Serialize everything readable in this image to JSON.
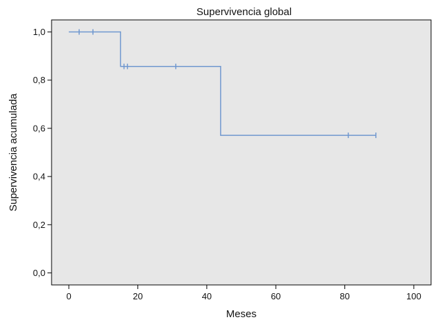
{
  "chart_data": {
    "type": "line",
    "title": "Supervivencia global",
    "xlabel": "Meses",
    "ylabel": "Supervivencia acumulada",
    "xlim": [
      -5,
      105
    ],
    "ylim": [
      -0.05,
      1.05
    ],
    "x_ticks": [
      0,
      20,
      40,
      60,
      80,
      100
    ],
    "x_tick_labels": [
      "0",
      "20",
      "40",
      "60",
      "80",
      "100"
    ],
    "y_ticks": [
      0.0,
      0.2,
      0.4,
      0.6,
      0.8,
      1.0
    ],
    "y_tick_labels": [
      "0,0",
      "0,2",
      "0,4",
      "0,6",
      "0,8",
      "1,0"
    ],
    "grid": false,
    "series": [
      {
        "step": true,
        "color": "#6f97cf",
        "x": [
          0,
          15,
          44,
          89
        ],
        "y": [
          1.0,
          0.857,
          0.571,
          0.571
        ],
        "censored_x": [
          3,
          7,
          16,
          17,
          31,
          81,
          89
        ],
        "censored_y": [
          1.0,
          1.0,
          0.857,
          0.857,
          0.857,
          0.571,
          0.571
        ]
      }
    ],
    "colors": {
      "plot_background": "#e7e7e7",
      "axis": "#000000",
      "line": "#6f97cf"
    }
  }
}
